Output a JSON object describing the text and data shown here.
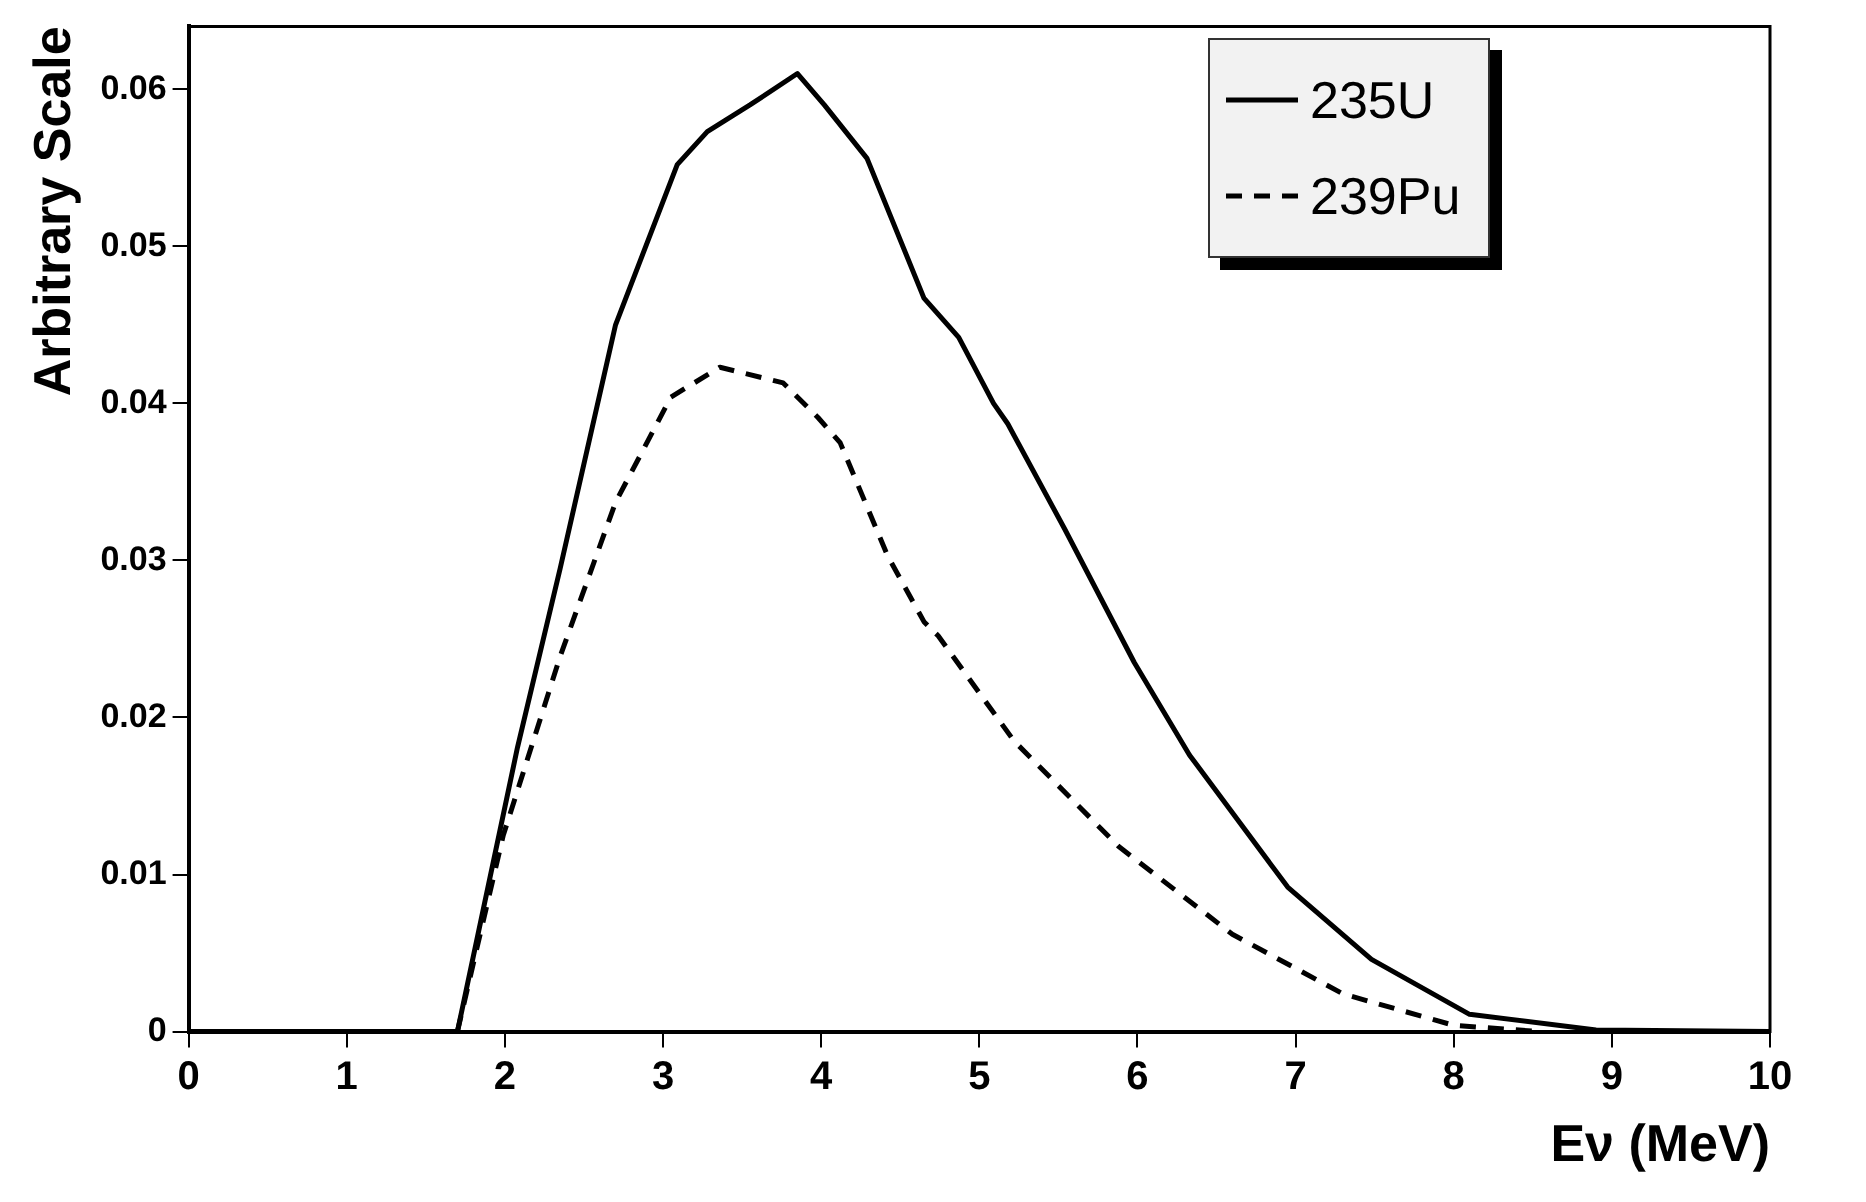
{
  "chart_data": {
    "type": "line",
    "xlabel": "Eν (MeV)",
    "ylabel": "Arbitrary Scale",
    "xlim": [
      0,
      10
    ],
    "ylim": [
      0,
      0.064
    ],
    "xticks": [
      0,
      1,
      2,
      3,
      4,
      5,
      6,
      7,
      8,
      9,
      10
    ],
    "yticks": [
      0,
      0.01,
      0.02,
      0.03,
      0.04,
      0.05,
      0.06
    ],
    "grid": false,
    "legend": "top right",
    "marker": "none",
    "series": [
      {
        "name": "235U",
        "color": "#000000",
        "line_style": "solid",
        "x": [
          0,
          1.5,
          1.7,
          2.08,
          2.35,
          2.7,
          3.09,
          3.28,
          3.55,
          3.85,
          4.02,
          4.29,
          4.65,
          4.87,
          5.09,
          5.18,
          5.54,
          5.98,
          6.33,
          6.95,
          7.48,
          8.1,
          8.9,
          10
        ],
        "values": [
          0,
          0,
          0,
          0.0181,
          0.0295,
          0.045,
          0.0552,
          0.0573,
          0.059,
          0.061,
          0.059,
          0.0556,
          0.0467,
          0.0442,
          0.04,
          0.0387,
          0.032,
          0.0235,
          0.0176,
          0.0092,
          0.0046,
          0.0011,
          0.0001,
          0
        ]
      },
      {
        "name": "239Pu",
        "color": "#000000",
        "line_style": "dashed",
        "x": [
          1.7,
          1.99,
          2.35,
          2.7,
          3.05,
          3.36,
          3.76,
          3.98,
          4.12,
          4.42,
          4.65,
          4.74,
          5.22,
          5.88,
          6.6,
          7.3,
          8.0,
          8.55
        ],
        "values": [
          0,
          0.0125,
          0.0239,
          0.0337,
          0.0404,
          0.0423,
          0.0413,
          0.0391,
          0.0375,
          0.0303,
          0.0261,
          0.0252,
          0.0185,
          0.0118,
          0.0062,
          0.0024,
          0.0004,
          0
        ]
      }
    ]
  }
}
